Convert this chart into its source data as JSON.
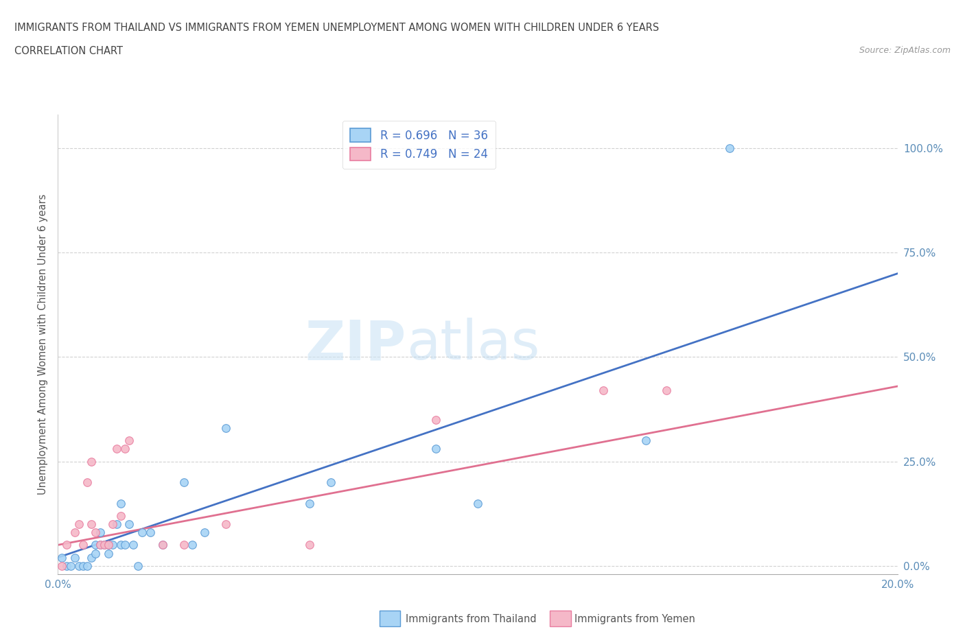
{
  "title_line1": "IMMIGRANTS FROM THAILAND VS IMMIGRANTS FROM YEMEN UNEMPLOYMENT AMONG WOMEN WITH CHILDREN UNDER 6 YEARS",
  "title_line2": "CORRELATION CHART",
  "source": "Source: ZipAtlas.com",
  "ylabel": "Unemployment Among Women with Children Under 6 years",
  "xlim": [
    0.0,
    0.2
  ],
  "ylim": [
    -0.02,
    1.08
  ],
  "yticks": [
    0.0,
    0.25,
    0.5,
    0.75,
    1.0
  ],
  "ytick_labels": [
    "0.0%",
    "25.0%",
    "50.0%",
    "75.0%",
    "100.0%"
  ],
  "xticks": [
    0.0,
    0.02,
    0.04,
    0.06,
    0.08,
    0.1,
    0.12,
    0.14,
    0.16,
    0.18,
    0.2
  ],
  "xtick_labels": [
    "0.0%",
    "",
    "",
    "",
    "",
    "",
    "",
    "",
    "",
    "",
    "20.0%"
  ],
  "thailand_color": "#a8d4f5",
  "thailand_edge": "#5b9bd5",
  "yemen_color": "#f5b8c8",
  "yemen_edge": "#e87da0",
  "trend_thailand_color": "#4472C4",
  "trend_yemen_color": "#e07090",
  "thailand_R": 0.696,
  "thailand_N": 36,
  "yemen_R": 0.749,
  "yemen_N": 24,
  "watermark_zip": "ZIP",
  "watermark_atlas": "atlas",
  "thailand_x": [
    0.001,
    0.002,
    0.003,
    0.004,
    0.005,
    0.006,
    0.007,
    0.008,
    0.009,
    0.009,
    0.01,
    0.01,
    0.011,
    0.012,
    0.012,
    0.013,
    0.014,
    0.015,
    0.015,
    0.016,
    0.017,
    0.018,
    0.019,
    0.02,
    0.022,
    0.025,
    0.03,
    0.032,
    0.035,
    0.04,
    0.06,
    0.065,
    0.09,
    0.1,
    0.14,
    0.16
  ],
  "thailand_y": [
    0.02,
    0.0,
    0.0,
    0.02,
    0.0,
    0.0,
    0.0,
    0.02,
    0.03,
    0.05,
    0.05,
    0.08,
    0.05,
    0.03,
    0.05,
    0.05,
    0.1,
    0.05,
    0.15,
    0.05,
    0.1,
    0.05,
    0.0,
    0.08,
    0.08,
    0.05,
    0.2,
    0.05,
    0.08,
    0.33,
    0.15,
    0.2,
    0.28,
    0.15,
    0.3,
    1.0
  ],
  "yemen_x": [
    0.001,
    0.002,
    0.004,
    0.005,
    0.006,
    0.007,
    0.008,
    0.008,
    0.009,
    0.01,
    0.011,
    0.012,
    0.013,
    0.014,
    0.015,
    0.016,
    0.017,
    0.025,
    0.03,
    0.04,
    0.06,
    0.09,
    0.13,
    0.145
  ],
  "yemen_y": [
    0.0,
    0.05,
    0.08,
    0.1,
    0.05,
    0.2,
    0.1,
    0.25,
    0.08,
    0.05,
    0.05,
    0.05,
    0.1,
    0.28,
    0.12,
    0.28,
    0.3,
    0.05,
    0.05,
    0.1,
    0.05,
    0.35,
    0.42,
    0.42
  ],
  "trend_th_x0": 0.0,
  "trend_th_y0": 0.02,
  "trend_th_x1": 0.2,
  "trend_th_y1": 0.7,
  "trend_ye_x0": 0.0,
  "trend_ye_y0": 0.05,
  "trend_ye_x1": 0.2,
  "trend_ye_y1": 0.43
}
